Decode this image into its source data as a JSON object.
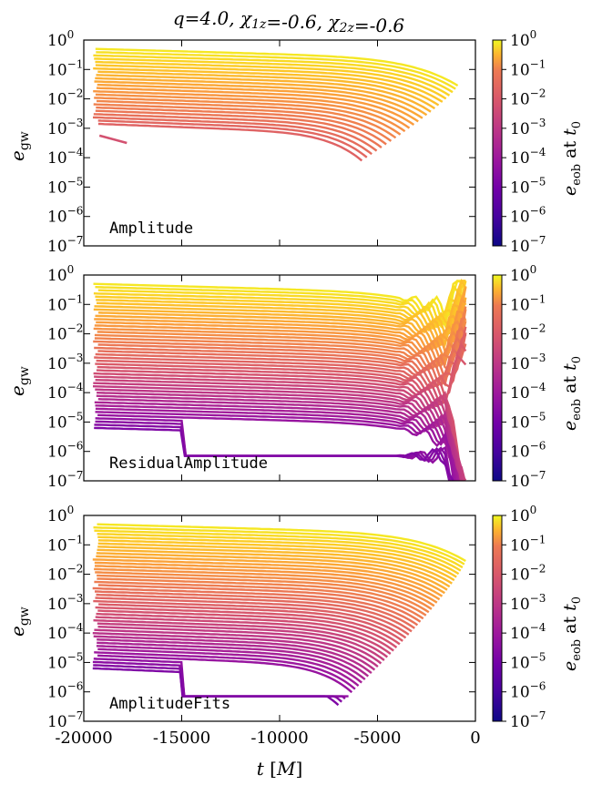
{
  "figure_title": "q=4.0, χ1z=-0.6, χ2z=-0.6",
  "chart_data": [
    {
      "type": "line",
      "title": "",
      "annotation": "Amplitude",
      "xlabel": "",
      "ylabel": "e_gw",
      "yscale": "log",
      "xlim": [
        -20000,
        0
      ],
      "ylim_log10": [
        -7,
        0
      ],
      "x_ticks": [
        -20000,
        -15000,
        -10000,
        -5000,
        0
      ],
      "y_ticks_log10": [
        -7,
        -6,
        -5,
        -4,
        -3,
        -2,
        -1,
        0
      ],
      "colorbar": {
        "label": "e_eob at t0",
        "log10_range": [
          -7,
          0
        ],
        "colormap": "plasma"
      },
      "curve_families": [
        {
          "initial_log10_e_start": -0.3,
          "initial_log10_e_end": -2.85,
          "count": 24,
          "x_start": -19400,
          "x_end_range": [
            -900,
            -5800
          ]
        },
        {
          "single_curve": {
            "x": [
              -19200,
              -17800
            ],
            "log10_y": [
              -3.25,
              -3.5
            ]
          }
        }
      ]
    },
    {
      "type": "line",
      "title": "",
      "annotation": "ResidualAmplitude",
      "xlabel": "",
      "ylabel": "e_gw",
      "yscale": "log",
      "xlim": [
        -20000,
        0
      ],
      "ylim_log10": [
        -7,
        0
      ],
      "x_ticks": [
        -20000,
        -15000,
        -10000,
        -5000,
        0
      ],
      "y_ticks_log10": [
        -7,
        -6,
        -5,
        -4,
        -3,
        -2,
        -1,
        0
      ],
      "colorbar": {
        "label": "e_eob at t0",
        "log10_range": [
          -7,
          0
        ],
        "colormap": "plasma"
      },
      "curve_families": [
        {
          "initial_log10_e_start": -0.3,
          "initial_log10_e_end": -5.2,
          "count": 46,
          "x_start": -19400,
          "x_end": -500,
          "floor_log10": -5.7,
          "oscillation_region": [
            -4000,
            -500
          ]
        }
      ]
    },
    {
      "type": "line",
      "title": "",
      "annotation": "AmplitudeFits",
      "xlabel": "t [M]",
      "ylabel": "e_gw",
      "yscale": "log",
      "xlim": [
        -20000,
        0
      ],
      "ylim_log10": [
        -7,
        0
      ],
      "x_ticks": [
        -20000,
        -15000,
        -10000,
        -5000,
        0
      ],
      "y_ticks_log10": [
        -7,
        -6,
        -5,
        -4,
        -3,
        -2,
        -1,
        0
      ],
      "colorbar": {
        "label": "e_eob at t0",
        "log10_range": [
          -7,
          0
        ],
        "colormap": "plasma"
      },
      "curve_families": [
        {
          "initial_log10_e_start": -0.3,
          "initial_log10_e_end": -5.2,
          "count": 46,
          "x_start": -19400,
          "x_end_range": [
            -500,
            -7000
          ],
          "floor_log10": -5.7
        }
      ]
    }
  ],
  "labels": {
    "x_ticks": [
      "-20000",
      "-15000",
      "-10000",
      "-5000",
      "0"
    ],
    "y_ticks_log10": [
      "-7",
      "-6",
      "-5",
      "-4",
      "-3",
      "-2",
      "-1",
      "0"
    ],
    "xlabel_t": "t",
    "xlabel_unit": "M",
    "ylabel_e": "e",
    "ylabel_sub": "gw",
    "cbar_e": "e",
    "cbar_sub": "eob",
    "cbar_at": "at",
    "cbar_t": "t",
    "cbar_t_sub": "0",
    "tick_base": "10"
  }
}
